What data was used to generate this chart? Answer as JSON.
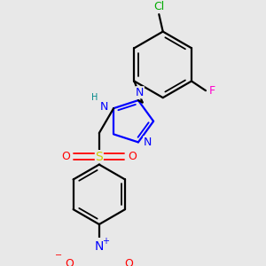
{
  "bg_color": "#e8e8e8",
  "bond_color": "#000000",
  "bond_lw": 1.6,
  "atom_colors": {
    "N": "#0000ff",
    "O": "#ff0000",
    "S": "#cccc00",
    "Cl": "#00aa00",
    "F": "#ff00cc",
    "H": "#008888",
    "C": "#000000"
  },
  "font_size": 9,
  "font_size_small": 7
}
